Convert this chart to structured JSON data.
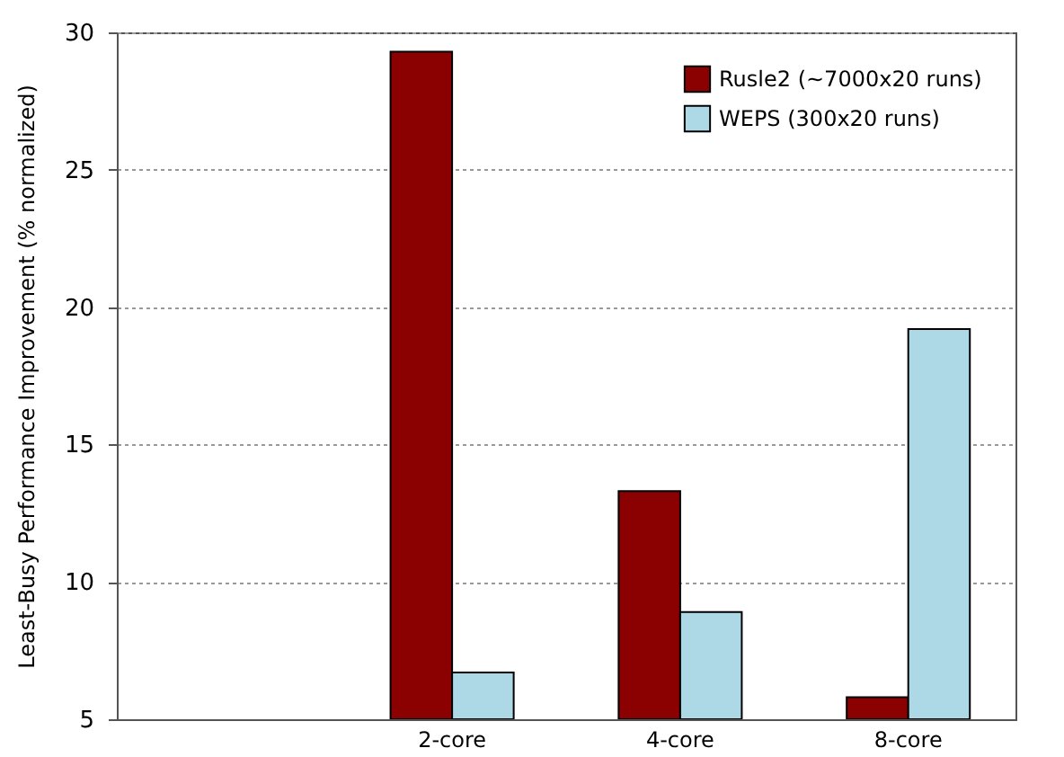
{
  "chart_data": {
    "type": "bar",
    "ylabel": "Least-Busy Performance Improvement (% normalized)",
    "categories": [
      null,
      "2-core",
      "4-core",
      "8-core"
    ],
    "series": [
      {
        "name": "Rusle2 (~7000x20 runs)",
        "color": "#8b0000",
        "values": [
          null,
          29.3,
          13.3,
          5.8
        ]
      },
      {
        "name": "WEPS (300x20 runs)",
        "color": "#add8e6",
        "values": [
          null,
          6.7,
          8.9,
          19.2
        ]
      }
    ],
    "ylim": [
      5,
      30
    ],
    "yticks": [
      5,
      10,
      15,
      20,
      25,
      30
    ],
    "grid": "y",
    "legend": "top right"
  }
}
